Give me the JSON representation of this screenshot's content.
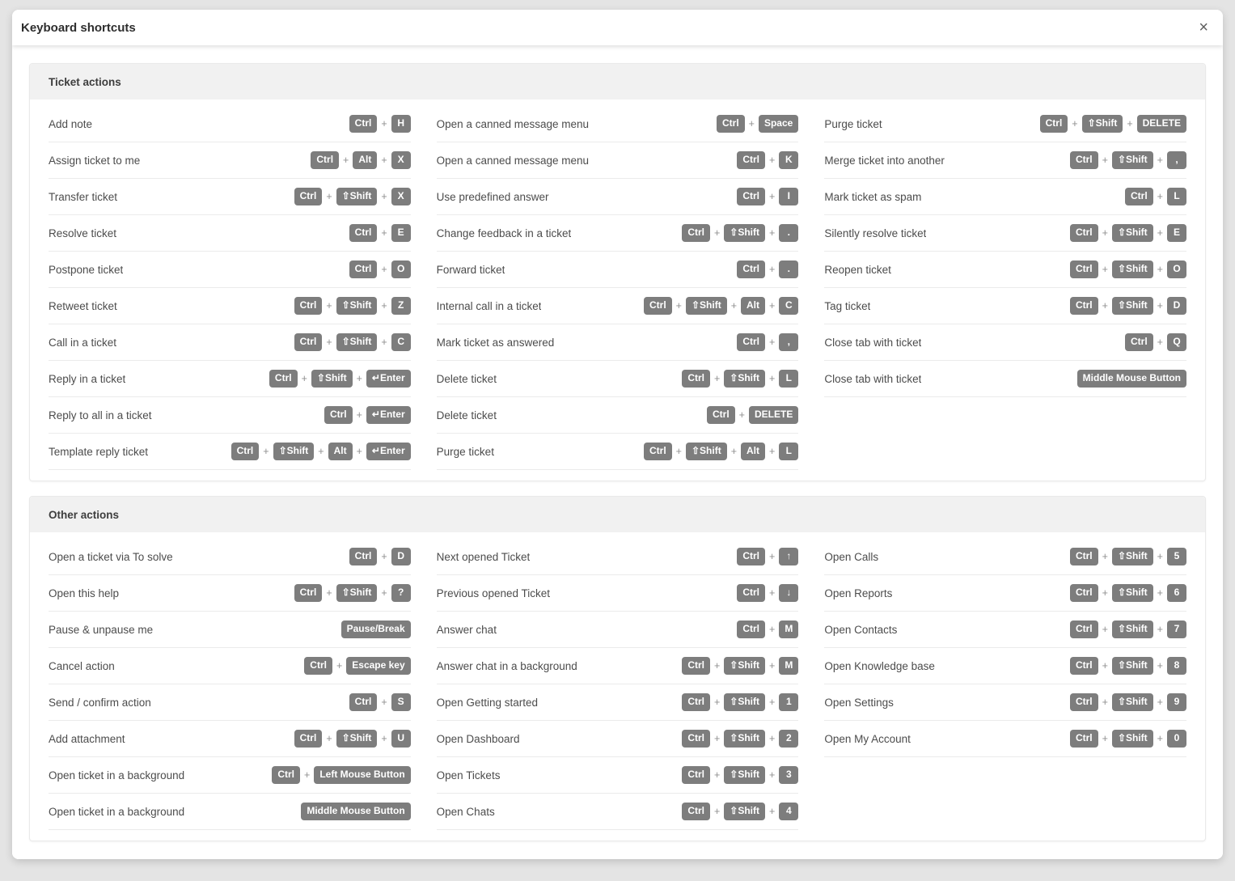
{
  "dialog": {
    "title": "Keyboard shortcuts",
    "close_glyph": "×"
  },
  "colors": {
    "page_bg": "#e4e4e4",
    "dialog_bg": "#ffffff",
    "section_header_bg": "#f1f1f1",
    "key_bg": "#7d7d7d",
    "key_text": "#ffffff",
    "label_text": "#4c4c4c",
    "divider": "#ebebeb"
  },
  "sections": [
    {
      "title": "Ticket actions",
      "columns": [
        [
          {
            "label": "Add note",
            "keys": [
              "Ctrl",
              "H"
            ]
          },
          {
            "label": "Assign ticket to me",
            "keys": [
              "Ctrl",
              "Alt",
              "X"
            ]
          },
          {
            "label": "Transfer ticket",
            "keys": [
              "Ctrl",
              "⇧Shift",
              "X"
            ]
          },
          {
            "label": "Resolve ticket",
            "keys": [
              "Ctrl",
              "E"
            ]
          },
          {
            "label": "Postpone ticket",
            "keys": [
              "Ctrl",
              "O"
            ]
          },
          {
            "label": "Retweet ticket",
            "keys": [
              "Ctrl",
              "⇧Shift",
              "Z"
            ]
          },
          {
            "label": "Call in a ticket",
            "keys": [
              "Ctrl",
              "⇧Shift",
              "C"
            ]
          },
          {
            "label": "Reply in a ticket",
            "keys": [
              "Ctrl",
              "⇧Shift",
              "↵Enter"
            ]
          },
          {
            "label": "Reply to all in a ticket",
            "keys": [
              "Ctrl",
              "↵Enter"
            ]
          },
          {
            "label": "Template reply ticket",
            "keys": [
              "Ctrl",
              "⇧Shift",
              "Alt",
              "↵Enter"
            ]
          }
        ],
        [
          {
            "label": "Open a canned message menu",
            "keys": [
              "Ctrl",
              "Space"
            ]
          },
          {
            "label": "Open a canned message menu",
            "keys": [
              "Ctrl",
              "K"
            ]
          },
          {
            "label": "Use predefined answer",
            "keys": [
              "Ctrl",
              "I"
            ]
          },
          {
            "label": "Change feedback in a ticket",
            "keys": [
              "Ctrl",
              "⇧Shift",
              "."
            ]
          },
          {
            "label": "Forward ticket",
            "keys": [
              "Ctrl",
              "."
            ]
          },
          {
            "label": "Internal call in a ticket",
            "keys": [
              "Ctrl",
              "⇧Shift",
              "Alt",
              "C"
            ]
          },
          {
            "label": "Mark ticket as answered",
            "keys": [
              "Ctrl",
              ","
            ]
          },
          {
            "label": "Delete ticket",
            "keys": [
              "Ctrl",
              "⇧Shift",
              "L"
            ]
          },
          {
            "label": "Delete ticket",
            "keys": [
              "Ctrl",
              "DELETE"
            ]
          },
          {
            "label": "Purge ticket",
            "keys": [
              "Ctrl",
              "⇧Shift",
              "Alt",
              "L"
            ]
          }
        ],
        [
          {
            "label": "Purge ticket",
            "keys": [
              "Ctrl",
              "⇧Shift",
              "DELETE"
            ]
          },
          {
            "label": "Merge ticket into another",
            "keys": [
              "Ctrl",
              "⇧Shift",
              ","
            ]
          },
          {
            "label": "Mark ticket as spam",
            "keys": [
              "Ctrl",
              "L"
            ]
          },
          {
            "label": "Silently resolve ticket",
            "keys": [
              "Ctrl",
              "⇧Shift",
              "E"
            ]
          },
          {
            "label": "Reopen ticket",
            "keys": [
              "Ctrl",
              "⇧Shift",
              "O"
            ]
          },
          {
            "label": "Tag ticket",
            "keys": [
              "Ctrl",
              "⇧Shift",
              "D"
            ]
          },
          {
            "label": "Close tab with ticket",
            "keys": [
              "Ctrl",
              "Q"
            ]
          },
          {
            "label": "Close tab with ticket",
            "keys": [
              "Middle Mouse Button"
            ]
          }
        ]
      ]
    },
    {
      "title": "Other actions",
      "columns": [
        [
          {
            "label": "Open a ticket via To solve",
            "keys": [
              "Ctrl",
              "D"
            ]
          },
          {
            "label": "Open this help",
            "keys": [
              "Ctrl",
              "⇧Shift",
              "?"
            ]
          },
          {
            "label": "Pause & unpause me",
            "keys": [
              "Pause/Break"
            ]
          },
          {
            "label": "Cancel action",
            "keys": [
              "Ctrl",
              "Escape key"
            ]
          },
          {
            "label": "Send / confirm action",
            "keys": [
              "Ctrl",
              "S"
            ]
          },
          {
            "label": "Add attachment",
            "keys": [
              "Ctrl",
              "⇧Shift",
              "U"
            ]
          },
          {
            "label": "Open ticket in a background",
            "keys": [
              "Ctrl",
              "Left Mouse Button"
            ]
          },
          {
            "label": "Open ticket in a background",
            "keys": [
              "Middle Mouse Button"
            ]
          }
        ],
        [
          {
            "label": "Next opened Ticket",
            "keys": [
              "Ctrl",
              "↑"
            ]
          },
          {
            "label": "Previous opened Ticket",
            "keys": [
              "Ctrl",
              "↓"
            ]
          },
          {
            "label": "Answer chat",
            "keys": [
              "Ctrl",
              "M"
            ]
          },
          {
            "label": "Answer chat in a background",
            "keys": [
              "Ctrl",
              "⇧Shift",
              "M"
            ]
          },
          {
            "label": "Open Getting started",
            "keys": [
              "Ctrl",
              "⇧Shift",
              "1"
            ]
          },
          {
            "label": "Open Dashboard",
            "keys": [
              "Ctrl",
              "⇧Shift",
              "2"
            ]
          },
          {
            "label": "Open Tickets",
            "keys": [
              "Ctrl",
              "⇧Shift",
              "3"
            ]
          },
          {
            "label": "Open Chats",
            "keys": [
              "Ctrl",
              "⇧Shift",
              "4"
            ]
          }
        ],
        [
          {
            "label": "Open Calls",
            "keys": [
              "Ctrl",
              "⇧Shift",
              "5"
            ]
          },
          {
            "label": "Open Reports",
            "keys": [
              "Ctrl",
              "⇧Shift",
              "6"
            ]
          },
          {
            "label": "Open Contacts",
            "keys": [
              "Ctrl",
              "⇧Shift",
              "7"
            ]
          },
          {
            "label": "Open Knowledge base",
            "keys": [
              "Ctrl",
              "⇧Shift",
              "8"
            ]
          },
          {
            "label": "Open Settings",
            "keys": [
              "Ctrl",
              "⇧Shift",
              "9"
            ]
          },
          {
            "label": "Open My Account",
            "keys": [
              "Ctrl",
              "⇧Shift",
              "0"
            ]
          }
        ]
      ]
    }
  ]
}
